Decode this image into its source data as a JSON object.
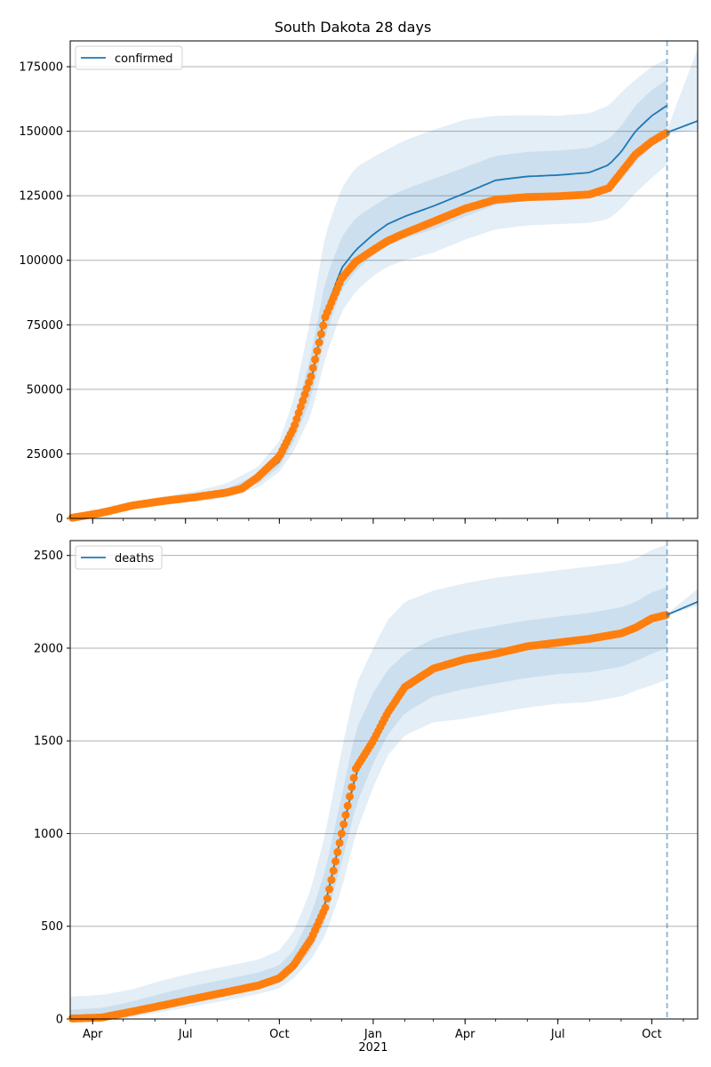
{
  "chart_data": [
    {
      "type": "line",
      "title": "South Dakota 28 days",
      "legend": [
        "confirmed"
      ],
      "legend_position": "upper-left",
      "grid": "horizontal",
      "ylim": [
        0,
        185000
      ],
      "yticks": [
        0,
        25000,
        50000,
        75000,
        100000,
        125000,
        150000,
        175000
      ],
      "ytick_labels": [
        "0",
        "25000",
        "50000",
        "75000",
        "100000",
        "125000",
        "150000",
        "175000"
      ],
      "forecast_start": "2021-10-16",
      "series": [
        {
          "name": "confirmed",
          "kind": "model_median",
          "x": [
            "2020-03-10",
            "2020-04-10",
            "2020-05-10",
            "2020-06-10",
            "2020-07-10",
            "2020-08-10",
            "2020-09-10",
            "2020-10-01",
            "2020-10-15",
            "2020-11-01",
            "2020-11-15",
            "2020-12-01",
            "2020-12-15",
            "2021-01-01",
            "2021-01-15",
            "2021-02-01",
            "2021-03-01",
            "2021-04-01",
            "2021-05-01",
            "2021-06-01",
            "2021-07-01",
            "2021-08-01",
            "2021-08-20",
            "2021-09-01",
            "2021-09-15",
            "2021-10-01",
            "2021-10-16"
          ],
          "y": [
            100,
            2200,
            5000,
            6800,
            8200,
            10000,
            15000,
            22000,
            33000,
            53000,
            80000,
            97000,
            104000,
            110000,
            114000,
            117000,
            121000,
            126000,
            131000,
            132500,
            133000,
            134000,
            137000,
            142000,
            150000,
            156000,
            160000
          ]
        },
        {
          "name": "",
          "kind": "observed",
          "x": [
            "2020-03-10",
            "2020-04-10",
            "2020-05-10",
            "2020-06-10",
            "2020-07-10",
            "2020-08-10",
            "2020-08-25",
            "2020-09-10",
            "2020-10-01",
            "2020-10-15",
            "2020-11-01",
            "2020-11-15",
            "2020-12-01",
            "2020-12-15",
            "2021-01-01",
            "2021-01-15",
            "2021-02-01",
            "2021-03-01",
            "2021-04-01",
            "2021-05-01",
            "2021-06-01",
            "2021-07-01",
            "2021-08-01",
            "2021-08-20",
            "2021-09-01",
            "2021-09-15",
            "2021-10-01",
            "2021-10-16"
          ],
          "y": [
            100,
            2200,
            5000,
            6800,
            8200,
            10000,
            11500,
            16000,
            24000,
            35000,
            55000,
            78000,
            93000,
            99500,
            104000,
            107500,
            110500,
            115000,
            120000,
            123500,
            124500,
            124800,
            125500,
            128000,
            134000,
            141000,
            146000,
            149500
          ]
        },
        {
          "name": "",
          "kind": "forecast",
          "x": [
            "2021-10-16",
            "2021-11-15"
          ],
          "y": [
            149500,
            154000
          ]
        }
      ],
      "bands": [
        {
          "x": [
            "2020-03-10",
            "2020-04-10",
            "2020-05-10",
            "2020-06-10",
            "2020-07-10",
            "2020-08-10",
            "2020-09-10",
            "2020-10-01",
            "2020-10-15",
            "2020-11-01",
            "2020-11-15",
            "2020-12-01",
            "2020-12-15",
            "2021-01-01",
            "2021-01-15",
            "2021-02-01",
            "2021-03-01",
            "2021-04-01",
            "2021-05-01",
            "2021-06-01",
            "2021-07-01",
            "2021-08-01",
            "2021-08-20",
            "2021-09-01",
            "2021-09-15",
            "2021-10-01",
            "2021-10-16"
          ],
          "lower": [
            0,
            1200,
            3500,
            5200,
            6500,
            8000,
            12000,
            18000,
            26000,
            40000,
            62000,
            80000,
            88000,
            94000,
            97500,
            100000,
            103000,
            108000,
            112000,
            113500,
            114000,
            114500,
            116000,
            120000,
            126000,
            132000,
            137000
          ],
          "upper": [
            600,
            3200,
            6500,
            8500,
            10500,
            13500,
            20000,
            30000,
            46000,
            78000,
            110000,
            128000,
            136000,
            140000,
            143000,
            146500,
            150500,
            154500,
            156000,
            156200,
            156000,
            157000,
            160000,
            165000,
            170000,
            175000,
            178000
          ]
        },
        {
          "x": [
            "2020-03-10",
            "2020-04-10",
            "2020-05-10",
            "2020-06-10",
            "2020-07-10",
            "2020-08-10",
            "2020-09-10",
            "2020-10-01",
            "2020-10-15",
            "2020-11-01",
            "2020-11-15",
            "2020-12-01",
            "2020-12-15",
            "2021-01-01",
            "2021-01-15",
            "2021-02-01",
            "2021-03-01",
            "2021-04-01",
            "2021-05-01",
            "2021-06-01",
            "2021-07-01",
            "2021-08-01",
            "2021-08-20",
            "2021-09-01",
            "2021-09-15",
            "2021-10-01",
            "2021-10-16"
          ],
          "lower": [
            0,
            1600,
            4200,
            6000,
            7300,
            9000,
            13500,
            20000,
            29500,
            46500,
            71000,
            88500,
            96000,
            102000,
            105500,
            108500,
            112000,
            117000,
            121500,
            123000,
            123500,
            124200,
            126500,
            131000,
            138000,
            144000,
            148500
          ],
          "upper": [
            350,
            2800,
            5800,
            7600,
            9200,
            11500,
            17000,
            25000,
            38000,
            63000,
            92000,
            109000,
            116500,
            121000,
            124500,
            127500,
            131500,
            136000,
            140500,
            142000,
            142500,
            143500,
            147000,
            152000,
            160000,
            166000,
            170000
          ]
        },
        {
          "x": [
            "2021-10-16",
            "2021-11-15"
          ],
          "lower": [
            149000,
            150500
          ],
          "upper": [
            150500,
            182000
          ]
        }
      ]
    },
    {
      "type": "line",
      "title": "",
      "legend": [
        "deaths"
      ],
      "legend_position": "upper-left",
      "grid": "horizontal",
      "ylim": [
        0,
        2580
      ],
      "yticks": [
        0,
        500,
        1000,
        1500,
        2000,
        2500
      ],
      "ytick_labels": [
        "0",
        "500",
        "1000",
        "1500",
        "2000",
        "2500"
      ],
      "xticks": [
        "2020-04-01",
        "2020-07-01",
        "2020-10-01",
        "2021-01-01",
        "2021-04-01",
        "2021-07-01",
        "2021-10-01"
      ],
      "xtick_labels": [
        "Apr",
        "Jul",
        "Oct",
        "Jan",
        "Apr",
        "Jul",
        "Oct"
      ],
      "xlabel_year": "2021",
      "forecast_start": "2021-10-16",
      "series": [
        {
          "name": "deaths",
          "kind": "model_median",
          "x": [
            "2020-03-10",
            "2020-04-10",
            "2020-05-10",
            "2020-06-10",
            "2020-07-10",
            "2020-08-10",
            "2020-09-10",
            "2020-10-01",
            "2020-10-15",
            "2020-11-01",
            "2020-11-15",
            "2020-12-01",
            "2020-12-15",
            "2021-01-01",
            "2021-01-15",
            "2021-02-01",
            "2021-03-01",
            "2021-04-01",
            "2021-05-01",
            "2021-06-01",
            "2021-07-01",
            "2021-08-01",
            "2021-09-01",
            "2021-09-15",
            "2021-10-01",
            "2021-10-16"
          ],
          "y": [
            2,
            8,
            40,
            75,
            110,
            145,
            180,
            220,
            290,
            430,
            620,
            1000,
            1320,
            1520,
            1660,
            1780,
            1880,
            1930,
            1970,
            2010,
            2030,
            2050,
            2080,
            2110,
            2150,
            2180
          ]
        },
        {
          "name": "",
          "kind": "observed",
          "x": [
            "2020-03-10",
            "2020-04-10",
            "2020-05-10",
            "2020-06-10",
            "2020-07-10",
            "2020-08-10",
            "2020-09-10",
            "2020-10-01",
            "2020-10-15",
            "2020-11-01",
            "2020-11-15",
            "2020-12-01",
            "2020-12-15",
            "2021-01-01",
            "2021-01-15",
            "2021-02-01",
            "2021-03-01",
            "2021-04-01",
            "2021-05-01",
            "2021-06-01",
            "2021-07-01",
            "2021-08-01",
            "2021-09-01",
            "2021-09-15",
            "2021-10-01",
            "2021-10-16"
          ],
          "y": [
            2,
            8,
            40,
            75,
            110,
            145,
            180,
            220,
            290,
            430,
            600,
            1000,
            1350,
            1500,
            1650,
            1790,
            1890,
            1940,
            1970,
            2010,
            2030,
            2050,
            2080,
            2110,
            2160,
            2180
          ]
        },
        {
          "name": "",
          "kind": "forecast",
          "x": [
            "2021-10-16",
            "2021-11-15"
          ],
          "y": [
            2180,
            2250
          ]
        }
      ],
      "bands": [
        {
          "x": [
            "2020-03-10",
            "2020-04-10",
            "2020-05-10",
            "2020-06-10",
            "2020-07-10",
            "2020-08-10",
            "2020-09-10",
            "2020-10-01",
            "2020-10-15",
            "2020-11-01",
            "2020-11-15",
            "2020-12-01",
            "2020-12-15",
            "2021-01-01",
            "2021-01-15",
            "2021-02-01",
            "2021-03-01",
            "2021-04-01",
            "2021-05-01",
            "2021-06-01",
            "2021-07-01",
            "2021-08-01",
            "2021-09-01",
            "2021-09-15",
            "2021-10-01",
            "2021-10-16"
          ],
          "lower": [
            0,
            0,
            10,
            40,
            70,
            100,
            135,
            165,
            220,
            320,
            450,
            700,
            1000,
            1250,
            1420,
            1530,
            1600,
            1620,
            1650,
            1680,
            1700,
            1710,
            1740,
            1770,
            1800,
            1830
          ],
          "upper": [
            120,
            130,
            160,
            210,
            250,
            285,
            320,
            370,
            470,
            700,
            1000,
            1450,
            1800,
            2000,
            2150,
            2250,
            2310,
            2350,
            2380,
            2400,
            2420,
            2440,
            2460,
            2480,
            2530,
            2560
          ]
        },
        {
          "x": [
            "2020-03-10",
            "2020-04-10",
            "2020-05-10",
            "2020-06-10",
            "2020-07-10",
            "2020-08-10",
            "2020-09-10",
            "2020-10-01",
            "2020-10-15",
            "2020-11-01",
            "2020-11-15",
            "2020-12-01",
            "2020-12-15",
            "2021-01-01",
            "2021-01-15",
            "2021-02-01",
            "2021-03-01",
            "2021-04-01",
            "2021-05-01",
            "2021-06-01",
            "2021-07-01",
            "2021-08-01",
            "2021-09-01",
            "2021-09-15",
            "2021-10-01",
            "2021-10-16"
          ],
          "lower": [
            0,
            3,
            25,
            58,
            92,
            125,
            160,
            195,
            255,
            370,
            530,
            840,
            1150,
            1380,
            1530,
            1650,
            1740,
            1780,
            1810,
            1840,
            1860,
            1870,
            1900,
            1930,
            1970,
            2000
          ],
          "upper": [
            50,
            60,
            95,
            140,
            180,
            215,
            250,
            290,
            370,
            560,
            800,
            1200,
            1560,
            1760,
            1880,
            1970,
            2050,
            2090,
            2120,
            2150,
            2170,
            2190,
            2220,
            2250,
            2300,
            2330
          ]
        },
        {
          "x": [
            "2021-10-16",
            "2021-11-15"
          ],
          "lower": [
            2175,
            2230
          ],
          "upper": [
            2185,
            2320
          ]
        }
      ]
    }
  ],
  "colors": {
    "line": "#1f77b4",
    "observed": "#ff7f0e",
    "band": "#1f77b4",
    "grid": "#b0b0b0"
  }
}
